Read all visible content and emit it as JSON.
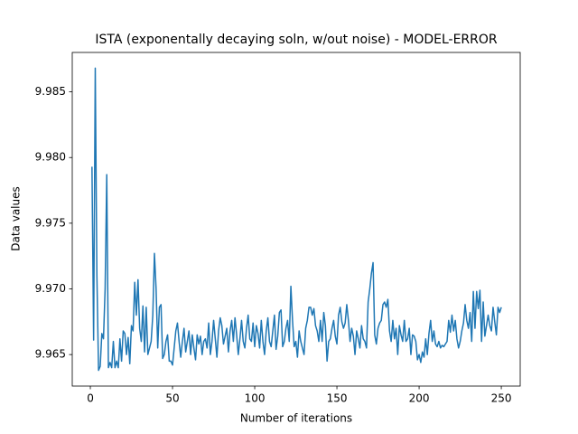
{
  "chart_data": {
    "type": "line",
    "title": "ISTA (exponentally decaying soln, w/out noise) - MODEL-ERROR",
    "xlabel": "Number of iterations",
    "ylabel": "Data values",
    "color": "#1f77b4",
    "grid": false,
    "xlim": [
      -11,
      261.5
    ],
    "ylim": [
      9.9626,
      9.988
    ],
    "xticks": [
      0,
      50,
      100,
      150,
      200,
      250
    ],
    "yticks": [
      9.965,
      {
        "value": 9.97,
        "label": "9.970"
      },
      9.975,
      {
        "value": 9.98,
        "label": "9.980"
      },
      9.985
    ],
    "x": [
      1,
      2,
      3,
      4,
      5,
      6,
      7,
      8,
      9,
      10,
      11,
      12,
      13,
      14,
      15,
      16,
      17,
      18,
      19,
      20,
      21,
      22,
      23,
      24,
      25,
      26,
      27,
      28,
      29,
      30,
      31,
      32,
      33,
      34,
      35,
      36,
      37,
      38,
      39,
      40,
      41,
      42,
      43,
      44,
      45,
      46,
      47,
      48,
      49,
      50,
      51,
      52,
      53,
      54,
      55,
      56,
      57,
      58,
      59,
      60,
      61,
      62,
      63,
      64,
      65,
      66,
      67,
      68,
      69,
      70,
      71,
      72,
      73,
      74,
      75,
      76,
      77,
      78,
      79,
      80,
      81,
      82,
      83,
      84,
      85,
      86,
      87,
      88,
      89,
      90,
      91,
      92,
      93,
      94,
      95,
      96,
      97,
      98,
      99,
      100,
      101,
      102,
      103,
      104,
      105,
      106,
      107,
      108,
      109,
      110,
      111,
      112,
      113,
      114,
      115,
      116,
      117,
      118,
      119,
      120,
      121,
      122,
      123,
      124,
      125,
      126,
      127,
      128,
      129,
      130,
      131,
      132,
      133,
      134,
      135,
      136,
      137,
      138,
      139,
      140,
      141,
      142,
      143,
      144,
      145,
      146,
      147,
      148,
      149,
      150,
      151,
      152,
      153,
      154,
      155,
      156,
      157,
      158,
      159,
      160,
      161,
      162,
      163,
      164,
      165,
      166,
      167,
      168,
      169,
      170,
      171,
      172,
      173,
      174,
      175,
      176,
      177,
      178,
      179,
      180,
      181,
      182,
      183,
      184,
      185,
      186,
      187,
      188,
      189,
      190,
      191,
      192,
      193,
      194,
      195,
      196,
      197,
      198,
      199,
      200,
      201,
      202,
      203,
      204,
      205,
      206,
      207,
      208,
      209,
      210,
      211,
      212,
      213,
      214,
      215,
      216,
      217,
      218,
      219,
      220,
      221,
      222,
      223,
      224,
      225,
      226,
      227,
      228,
      229,
      230,
      231,
      232,
      233,
      234,
      235,
      236,
      237,
      238,
      239,
      240,
      241,
      242,
      243,
      244,
      245,
      246,
      247,
      248,
      249,
      250
    ],
    "values": [
      9.9793,
      9.9661,
      9.9868,
      9.971,
      9.9638,
      9.9641,
      9.9666,
      9.9662,
      9.97,
      9.9787,
      9.964,
      9.9644,
      9.964,
      9.966,
      9.964,
      9.9645,
      9.964,
      9.9662,
      9.9645,
      9.9668,
      9.9666,
      9.965,
      9.9663,
      9.9643,
      9.9672,
      9.9668,
      9.9705,
      9.968,
      9.9707,
      9.967,
      9.966,
      9.9687,
      9.9652,
      9.9686,
      9.965,
      9.9655,
      9.966,
      9.968,
      9.9727,
      9.97,
      9.9655,
      9.9686,
      9.9688,
      9.9647,
      9.965,
      9.966,
      9.9665,
      9.9645,
      9.9645,
      9.9642,
      9.9655,
      9.9668,
      9.9674,
      9.966,
      9.9648,
      9.966,
      9.967,
      9.9652,
      9.966,
      9.9668,
      9.965,
      9.9665,
      9.9655,
      9.9646,
      9.9665,
      9.9658,
      9.9664,
      9.965,
      9.966,
      9.9662,
      9.9655,
      9.9674,
      9.965,
      9.966,
      9.9676,
      9.9662,
      9.9648,
      9.9668,
      9.9678,
      9.9672,
      9.9658,
      9.9664,
      9.967,
      9.9652,
      9.9668,
      9.9676,
      9.966,
      9.9678,
      9.9665,
      9.965,
      9.9662,
      9.9676,
      9.966,
      9.9655,
      9.967,
      9.968,
      9.9662,
      9.966,
      9.9674,
      9.9656,
      9.9672,
      9.9666,
      9.9655,
      9.9676,
      9.966,
      9.965,
      9.9668,
      9.9678,
      9.966,
      9.9656,
      9.9668,
      9.968,
      9.9654,
      9.9664,
      9.9682,
      9.9684,
      9.9656,
      9.966,
      9.967,
      9.9676,
      9.966,
      9.9702,
      9.9676,
      9.9656,
      9.966,
      9.9648,
      9.9668,
      9.966,
      9.9655,
      9.965,
      9.967,
      9.9676,
      9.9686,
      9.9686,
      9.968,
      9.9685,
      9.9672,
      9.9668,
      9.966,
      9.9676,
      9.966,
      9.9682,
      9.9672,
      9.9645,
      9.966,
      9.9662,
      9.967,
      9.9676,
      9.9664,
      9.9658,
      9.968,
      9.9686,
      9.9675,
      9.967,
      9.9674,
      9.9688,
      9.9676,
      9.966,
      9.967,
      9.9664,
      9.965,
      9.9668,
      9.9662,
      9.9655,
      9.9672,
      9.9662,
      9.966,
      9.9655,
      9.969,
      9.97,
      9.9712,
      9.972,
      9.9665,
      9.9658,
      9.967,
      9.9674,
      9.9676,
      9.9688,
      9.969,
      9.9686,
      9.9692,
      9.9668,
      9.966,
      9.9676,
      9.9662,
      9.967,
      9.965,
      9.9672,
      9.9665,
      9.966,
      9.9676,
      9.966,
      9.9662,
      9.967,
      9.965,
      9.9665,
      9.9664,
      9.966,
      9.9646,
      9.965,
      9.9644,
      9.9652,
      9.9648,
      9.9662,
      9.965,
      9.9666,
      9.9676,
      9.966,
      9.9668,
      9.9658,
      9.9656,
      9.966,
      9.9655,
      9.9657,
      9.9656,
      9.9658,
      9.966,
      9.9676,
      9.9667,
      9.968,
      9.9668,
      9.9676,
      9.9662,
      9.9655,
      9.966,
      9.9668,
      9.9674,
      9.9688,
      9.9676,
      9.967,
      9.9682,
      9.966,
      9.9698,
      9.967,
      9.9698,
      9.9685,
      9.9699,
      9.966,
      9.969,
      9.9664,
      9.9672,
      9.968,
      9.9672,
      9.9668,
      9.9686,
      9.9675,
      9.9665,
      9.9686,
      9.9682,
      9.9686
    ]
  }
}
